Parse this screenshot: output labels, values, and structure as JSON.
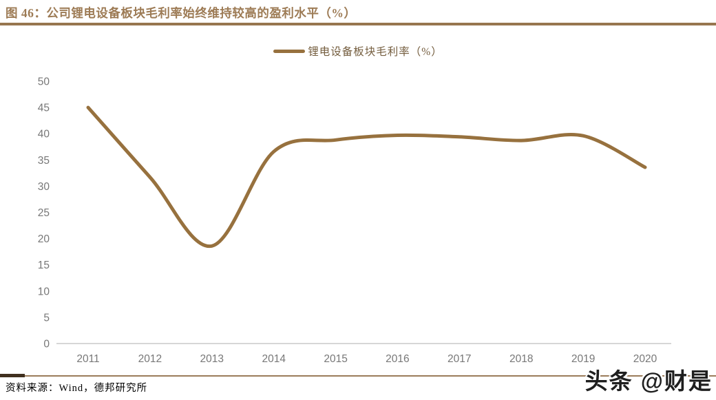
{
  "header": {
    "title": "图 46：公司锂电设备板块毛利率始终维持较高的盈利水平（%）"
  },
  "legend": {
    "label": "锂电设备板块毛利率（%）"
  },
  "chart_data": {
    "type": "line",
    "title": "图 46：公司锂电设备板块毛利率始终维持较高的盈利水平（%）",
    "categories": [
      "2011",
      "2012",
      "2013",
      "2014",
      "2015",
      "2016",
      "2017",
      "2018",
      "2019",
      "2020"
    ],
    "series": [
      {
        "name": "锂电设备板块毛利率（%）",
        "values": [
          45.0,
          31.7,
          18.6,
          36.6,
          38.8,
          39.7,
          39.4,
          38.7,
          39.6,
          33.6
        ]
      }
    ],
    "xlabel": "",
    "ylabel": "",
    "ylim": [
      0,
      50
    ],
    "ytick_step": 5,
    "grid": false,
    "legend_position": "top-center"
  },
  "footer": {
    "source": "资料来源：Wind，德邦研究所",
    "watermark": "头条 @财是"
  },
  "colors": {
    "accent": "#97713E",
    "title_text": "#9D7B55",
    "legend_text": "#745D3E",
    "axis_text": "#777777",
    "axis_line": "#C9C9C9",
    "divider": "#9A7B5A",
    "divider_dark": "#40301F"
  }
}
